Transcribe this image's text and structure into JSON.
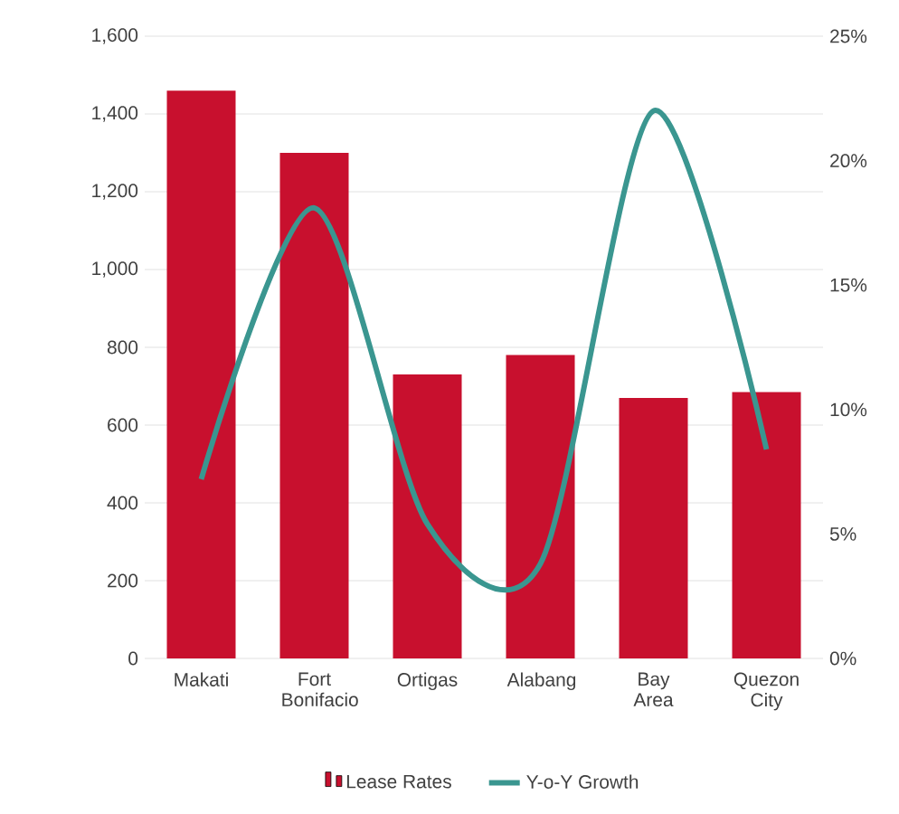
{
  "chart_data": {
    "type": "bar",
    "categories": [
      "Makati",
      "Fort Bonifacio",
      "Ortigas",
      "Alabang",
      "Bay Area",
      "Quezon City"
    ],
    "series": [
      {
        "name": "Lease Rates",
        "color": "#c8102e",
        "values": [
          1460,
          1300,
          730,
          780,
          670,
          685
        ]
      },
      {
        "name": "Y-o-Y Growth",
        "type": "line",
        "axis": "y2",
        "color": "#3a9690",
        "values": [
          7.2,
          18.1,
          5.4,
          3.8,
          22,
          8.4
        ]
      }
    ],
    "ylim": [
      0,
      1600
    ],
    "yticks": [
      0,
      {
        "value": 200,
        "label": "200"
      },
      {
        "value": 400,
        "label": "400"
      },
      {
        "value": 600,
        "label": "600"
      },
      {
        "value": 800,
        "label": "800"
      },
      {
        "value": 1000,
        "label": "1,000"
      },
      {
        "value": 1200,
        "label": "1,200"
      },
      {
        "value": 1400,
        "label": "1,400"
      },
      {
        "value": 1600,
        "label": "1,600"
      }
    ],
    "y2lim": [
      0,
      25
    ],
    "y2ticks": [
      {
        "value": 0,
        "label": "0%"
      },
      {
        "value": 5,
        "label": "5%"
      },
      {
        "value": 10,
        "label": "10%"
      },
      {
        "value": 15,
        "label": "15%"
      },
      {
        "value": 20,
        "label": "20%"
      },
      {
        "value": 25,
        "label": "25%"
      }
    ],
    "grid": "y",
    "legend": "bottom",
    "line_style": "solid",
    "marker": "none"
  }
}
